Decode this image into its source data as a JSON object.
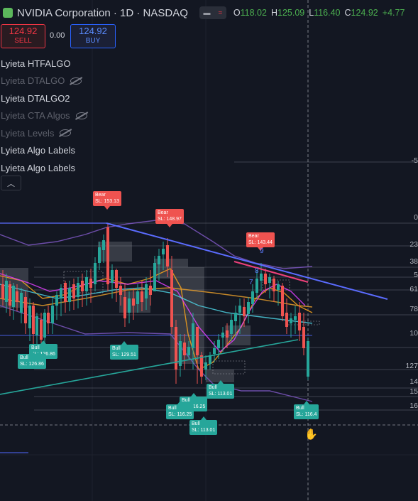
{
  "header": {
    "title": "NVIDIA Corporation · 1D · NASDAQ",
    "ohlc": {
      "o_label": "O",
      "o": "118.02",
      "h_label": "H",
      "h": "125.09",
      "l_label": "L",
      "l": "116.40",
      "c_label": "C",
      "c": "124.92",
      "change": "+4.77"
    }
  },
  "trade": {
    "sell_price": "124.92",
    "sell_label": "SELL",
    "spread": "0.00",
    "buy_price": "124.92",
    "buy_label": "BUY"
  },
  "indicators": [
    {
      "label": "Lyieta HTFALGO",
      "hidden": false
    },
    {
      "label": "Lyieta DTALGO",
      "hidden": true
    },
    {
      "label": "Lyieta DTALGO2",
      "hidden": false
    },
    {
      "label": "Lyieta CTA Algos",
      "hidden": true
    },
    {
      "label": "Lyieta Levels",
      "hidden": true
    },
    {
      "label": "Lyieta Algo Labels",
      "hidden": false
    },
    {
      "label": "Lyieta Algo Labels",
      "hidden": false
    }
  ],
  "collapse_icon": "chevron-up-icon",
  "price_axis_partial": [
    "-5",
    "0",
    "23",
    "38",
    "5",
    "61",
    "78",
    "10",
    "127",
    "14",
    "15",
    "16"
  ],
  "signals": [
    {
      "type": "Bear",
      "sl": "SL: 153.13"
    },
    {
      "type": "Bear",
      "sl": "SL: 148.97"
    },
    {
      "type": "Bear",
      "sl": "SL: 143.44"
    },
    {
      "type": "Bull",
      "sl": "SL: 126.86"
    },
    {
      "type": "Bull",
      "sl": "SL: 126.86"
    },
    {
      "type": "Bull",
      "sl": "SL: 129.51"
    },
    {
      "type": "Bull",
      "sl": "SL: 116.25"
    },
    {
      "type": "Bull",
      "sl": "SL: 116.25"
    },
    {
      "type": "Bull",
      "sl": "SL: 113.01"
    },
    {
      "type": "Bull",
      "sl": "SL: 113.01"
    },
    {
      "type": "Bull",
      "sl": "SL: 116.4"
    }
  ],
  "wave_labels": [
    "9",
    "8",
    "7"
  ],
  "colors": {
    "bg": "#131722",
    "up": "#26a69a",
    "down": "#ef5350",
    "trend": "#5b6cff",
    "ema_fast": "#f7a21b",
    "ema_slow": "#e040fb",
    "ema_cyan": "#4dd0e1",
    "baseline": "#26a69a"
  }
}
